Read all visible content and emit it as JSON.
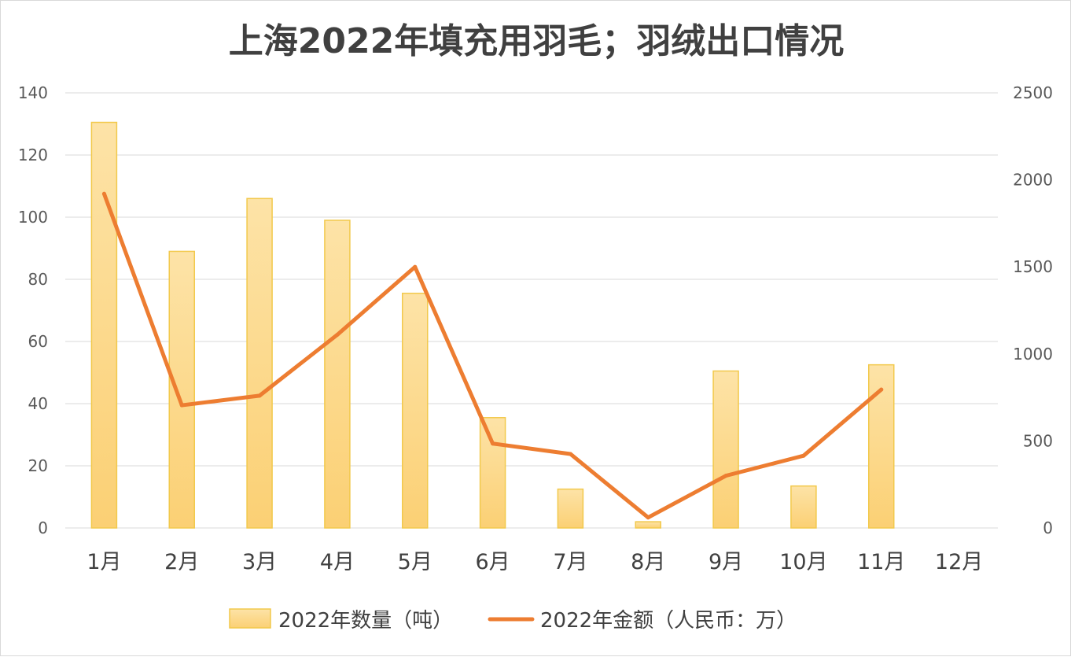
{
  "chart_data": {
    "type": "bar+line",
    "title": "上海2022年填充用羽毛；羽绒出口情况",
    "categories": [
      "1月",
      "2月",
      "3月",
      "4月",
      "5月",
      "6月",
      "7月",
      "8月",
      "9月",
      "10月",
      "11月",
      "12月"
    ],
    "series": [
      {
        "name": "2022年数量（吨）",
        "type": "bar",
        "axis": "left",
        "color": "#fbd37a",
        "values": [
          130.5,
          89,
          106,
          99,
          75.5,
          35.5,
          12.5,
          2,
          50.5,
          13.5,
          52.5,
          null
        ]
      },
      {
        "name": "2022年金额（人民币：万）",
        "type": "line",
        "axis": "right",
        "color": "#ed7d31",
        "values": [
          1920,
          705,
          760,
          1110,
          1500,
          485,
          425,
          60,
          300,
          415,
          795,
          null
        ]
      }
    ],
    "y_left": {
      "ylim": [
        0,
        140
      ],
      "ticks": [
        "0",
        "20",
        "40",
        "60",
        "80",
        "100",
        "120",
        "140"
      ]
    },
    "y_right": {
      "ylim": [
        0,
        2500
      ],
      "ticks": [
        "0",
        "500",
        "1000",
        "1500",
        "2000",
        "2500"
      ]
    },
    "grid": true,
    "legend_position": "bottom"
  }
}
